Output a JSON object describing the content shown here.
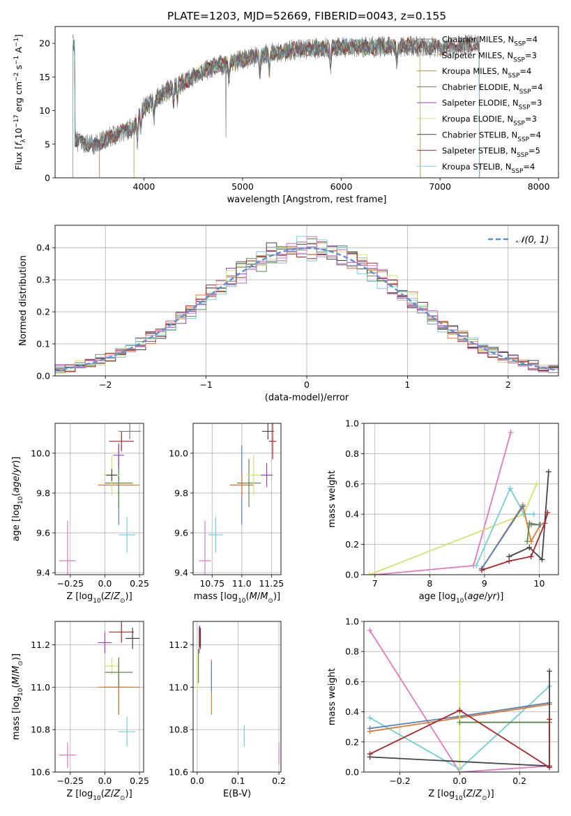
{
  "figure": {
    "title": "PLATE=1203, MJD=52669, FIBERID=0043, z=0.155"
  },
  "colors": {
    "Chabrier MILES": "#7f7f7f",
    "Salpeter MILES": "#aaaaaa",
    "Kroupa MILES": "#c9893a",
    "Chabrier ELODIE": "#5a8a4a",
    "Salpeter ELODIE": "#9b3fbf",
    "Kroupa ELODIE": "#d6e266",
    "Chabrier STELIB": "#444444",
    "Salpeter STELIB": "#b22222",
    "Kroupa STELIB": "#7fd3e0",
    "pink": "#e377c2",
    "orange": "#e07a2f",
    "steelblue": "#4f81bd",
    "teal": "#6fd0d8",
    "normal_curve": "#5b8fd6"
  },
  "chart_data": [
    {
      "type": "line",
      "panel": "spectrum",
      "title": "PLATE=1203, MJD=52669, FIBERID=0043, z=0.155",
      "xlabel": "wavelength [Angstrom, rest frame]",
      "ylabel": "Flux [f_λ 10^-17 erg cm^-2 s^-1 A^-1]",
      "xlim": [
        3100,
        8200
      ],
      "ylim": [
        0,
        22.5
      ],
      "xticks": [
        4000,
        5000,
        6000,
        7000,
        8000
      ],
      "yticks": [
        0,
        5,
        10,
        15,
        20
      ],
      "legend_position": "top-right",
      "continuum": {
        "x": [
          3300,
          3500,
          3700,
          3900,
          4000,
          4100,
          4300,
          4500,
          4700,
          4900,
          5100,
          5300,
          5500,
          5700,
          5900,
          6100,
          6300,
          6500,
          6700,
          6900,
          7100,
          7300,
          7400
        ],
        "y": [
          5.5,
          4.8,
          6.5,
          7.5,
          10.5,
          11.5,
          13.5,
          15.0,
          16.5,
          17.2,
          18.0,
          18.5,
          19.0,
          19.2,
          19.3,
          19.5,
          19.4,
          19.5,
          19.6,
          19.4,
          19.5,
          19.8,
          19.8
        ]
      },
      "series": [
        {
          "name": "Chabrier MILES",
          "nssp": "4",
          "range": [
            3280,
            6800
          ]
        },
        {
          "name": "Salpeter MILES",
          "nssp": "3",
          "range": [
            3550,
            7400
          ]
        },
        {
          "name": "Kroupa MILES",
          "nssp": "4",
          "range": [
            3550,
            7400
          ]
        },
        {
          "name": "Chabrier ELODIE",
          "nssp": "4",
          "range": [
            3900,
            6800
          ]
        },
        {
          "name": "Salpeter ELODIE",
          "nssp": "3",
          "range": [
            3900,
            6800
          ]
        },
        {
          "name": "Kroupa ELODIE",
          "nssp": "3",
          "range": [
            3900,
            6800
          ]
        },
        {
          "name": "Chabrier STELIB",
          "nssp": "4",
          "range": [
            3280,
            7400
          ]
        },
        {
          "name": "Salpeter STELIB",
          "nssp": "5",
          "range": [
            3280,
            7400
          ]
        },
        {
          "name": "Kroupa STELIB",
          "nssp": "4",
          "range": [
            3280,
            7400
          ]
        }
      ]
    },
    {
      "type": "line",
      "panel": "residuals",
      "xlabel": "(data-model)/error",
      "ylabel": "Normed distribution",
      "xlim": [
        -2.5,
        2.5
      ],
      "ylim": [
        0,
        0.47
      ],
      "xticks": [
        -2,
        -1,
        0,
        1,
        2
      ],
      "yticks": [
        0.0,
        0.1,
        0.2,
        0.3,
        0.4
      ],
      "grid": true,
      "legend_position": "top-right",
      "normal_label": "𝒩(0, 1)",
      "bin_width": 0.1
    },
    {
      "type": "scatter",
      "panel": "age-vs-Z",
      "xlabel": "Z [log10(Z/Z⊙)]",
      "ylabel": "age [log10(age/yr)]",
      "xlim": [
        -0.36,
        0.28
      ],
      "ylim": [
        9.39,
        10.15
      ],
      "xticks": [
        -0.25,
        0.0,
        0.25
      ],
      "yticks": [
        9.4,
        9.6,
        9.8,
        10.0
      ],
      "grid": true,
      "points": [
        {
          "color": "pink",
          "x": -0.27,
          "xerr": 0.06,
          "y": 9.46,
          "yerr": 0.2
        },
        {
          "color": "teal",
          "x": 0.16,
          "xerr": 0.06,
          "y": 9.59,
          "yerr": 0.09
        },
        {
          "color": "steelblue",
          "x": 0.1,
          "xerr": 0.1,
          "y": 9.84,
          "yerr": 0.2
        },
        {
          "color": "orange",
          "x": 0.1,
          "xerr": 0.15,
          "y": 9.84,
          "yerr": 0.06
        },
        {
          "color": "Chabrier ELODIE",
          "x": 0.1,
          "xerr": 0.1,
          "y": 9.85,
          "yerr": 0.12
        },
        {
          "color": "Kroupa ELODIE",
          "x": 0.05,
          "xerr": 0.06,
          "y": 9.89,
          "yerr": 0.1
        },
        {
          "color": "Chabrier STELIB",
          "x": 0.05,
          "xerr": 0.04,
          "y": 9.89,
          "yerr": 0.03
        },
        {
          "color": "Salpeter ELODIE",
          "x": 0.1,
          "xerr": 0.04,
          "y": 9.99,
          "yerr": 0.06
        },
        {
          "color": "Salpeter STELIB",
          "x": 0.12,
          "xerr": 0.09,
          "y": 10.06,
          "yerr": 0.05
        },
        {
          "color": "Chabrier MILES",
          "x": 0.18,
          "xerr": 0.08,
          "y": 10.11,
          "yerr": 0.04
        }
      ]
    },
    {
      "type": "scatter",
      "panel": "age-vs-mass",
      "xlabel": "mass [log10(M/M⊙)]",
      "ylabel": "",
      "xlim": [
        10.59,
        11.33
      ],
      "ylim": [
        9.39,
        10.15
      ],
      "xticks": [
        10.75,
        11.0,
        11.25
      ],
      "yticks": [
        9.4,
        9.6,
        9.8,
        10.0
      ],
      "grid": true,
      "points": [
        {
          "color": "pink",
          "x": 10.69,
          "xerr": 0.05,
          "y": 9.46,
          "yerr": 0.2
        },
        {
          "color": "teal",
          "x": 10.78,
          "xerr": 0.06,
          "y": 9.59,
          "yerr": 0.09
        },
        {
          "color": "steelblue",
          "x": 11.0,
          "xerr": 0.1,
          "y": 9.84,
          "yerr": 0.2
        },
        {
          "color": "orange",
          "x": 11.0,
          "xerr": 0.1,
          "y": 9.84,
          "yerr": 0.06
        },
        {
          "color": "Chabrier ELODIE",
          "x": 11.06,
          "xerr": 0.1,
          "y": 9.85,
          "yerr": 0.12
        },
        {
          "color": "Kroupa ELODIE",
          "x": 11.1,
          "xerr": 0.06,
          "y": 9.89,
          "yerr": 0.1
        },
        {
          "color": "Salpeter ELODIE",
          "x": 11.21,
          "xerr": 0.05,
          "y": 9.89,
          "yerr": 0.06
        },
        {
          "color": "Salpeter STELIB",
          "x": 11.26,
          "xerr": 0.03,
          "y": 10.06,
          "yerr": 0.09
        },
        {
          "color": "Chabrier STELIB",
          "x": 11.22,
          "xerr": 0.05,
          "y": 10.11,
          "yerr": 0.04
        }
      ]
    },
    {
      "type": "line",
      "panel": "massweight-vs-age",
      "xlabel": "age [log10(age/yr)]",
      "ylabel": "mass weight",
      "xlim": [
        6.8,
        10.35
      ],
      "ylim": [
        0,
        1.0
      ],
      "xticks": [
        7,
        8,
        9,
        10
      ],
      "yticks": [
        0.0,
        0.2,
        0.4,
        0.6,
        0.8,
        1.0
      ],
      "grid": true,
      "series": [
        {
          "color": "pink",
          "x": [
            7.0,
            8.8,
            9.48
          ],
          "y": [
            0.0,
            0.06,
            0.94
          ]
        },
        {
          "color": "Kroupa ELODIE",
          "x": [
            6.9,
            9.72,
            9.95
          ],
          "y": [
            0.0,
            0.4,
            0.6
          ]
        },
        {
          "color": "teal",
          "x": [
            8.85,
            9.47,
            9.72,
            9.9
          ],
          "y": [
            0.06,
            0.57,
            0.4,
            0.4
          ]
        },
        {
          "color": "orange",
          "x": [
            8.95,
            9.7,
            9.85,
            10.02
          ],
          "y": [
            0.04,
            0.46,
            0.22,
            0.33
          ]
        },
        {
          "color": "steelblue",
          "x": [
            8.95,
            9.7
          ],
          "y": [
            0.04,
            0.45
          ]
        },
        {
          "color": "Chabrier ELODIE",
          "x": [
            9.78,
            9.82,
            10.0
          ],
          "y": [
            0.22,
            0.34,
            0.33
          ]
        },
        {
          "color": "Chabrier STELIB",
          "x": [
            9.45,
            9.82,
            10.05,
            10.17
          ],
          "y": [
            0.12,
            0.18,
            0.1,
            0.68
          ]
        },
        {
          "color": "Salpeter STELIB",
          "x": [
            8.95,
            9.45,
            9.85,
            10.1,
            10.15
          ],
          "y": [
            0.03,
            0.09,
            0.12,
            0.34,
            0.41
          ]
        },
        {
          "color": "Chabrier MILES",
          "x": [
            9.85,
            10.02
          ],
          "y": [
            0.33,
            0.33
          ]
        }
      ]
    },
    {
      "type": "scatter",
      "panel": "mass-vs-Z",
      "xlabel": "Z [log10(Z/Z⊙)]",
      "ylabel": "mass [log10(M/M⊙)]",
      "xlim": [
        -0.36,
        0.28
      ],
      "ylim": [
        10.6,
        11.31
      ],
      "xticks": [
        -0.25,
        0.0,
        0.25
      ],
      "yticks": [
        10.6,
        10.8,
        11.0,
        11.2
      ],
      "grid": true,
      "points": [
        {
          "color": "pink",
          "x": -0.27,
          "xerr": 0.06,
          "y": 10.68,
          "yerr": 0.06
        },
        {
          "color": "teal",
          "x": 0.16,
          "xerr": 0.06,
          "y": 10.79,
          "yerr": 0.07
        },
        {
          "color": "steelblue",
          "x": 0.1,
          "xerr": 0.1,
          "y": 11.0,
          "yerr": 0.13
        },
        {
          "color": "orange",
          "x": 0.1,
          "xerr": 0.15,
          "y": 11.0,
          "yerr": 0.13
        },
        {
          "color": "Kroupa ELODIE",
          "x": 0.05,
          "xerr": 0.05,
          "y": 11.1,
          "yerr": 0.04
        },
        {
          "color": "Chabrier ELODIE",
          "x": 0.1,
          "xerr": 0.1,
          "y": 11.07,
          "yerr": 0.07
        },
        {
          "color": "Salpeter ELODIE",
          "x": 0.0,
          "xerr": 0.05,
          "y": 11.21,
          "yerr": 0.05
        },
        {
          "color": "Salpeter STELIB",
          "x": 0.12,
          "xerr": 0.09,
          "y": 11.26,
          "yerr": 0.05
        },
        {
          "color": "Chabrier STELIB",
          "x": 0.2,
          "xerr": 0.05,
          "y": 11.23,
          "yerr": 0.05
        }
      ]
    },
    {
      "type": "scatter",
      "panel": "mass-vs-EBV",
      "xlabel": "E(B-V)",
      "ylabel": "",
      "xlim": [
        -0.01,
        0.205
      ],
      "ylim": [
        10.6,
        11.31
      ],
      "xticks": [
        0.0,
        0.1,
        0.2
      ],
      "yticks": [
        10.6,
        10.8,
        11.0,
        11.2
      ],
      "grid": true,
      "points": [
        {
          "color": "pink",
          "x": 0.2,
          "xerr": 0,
          "y": 10.69,
          "yerr": 0.05
        },
        {
          "color": "teal",
          "x": 0.115,
          "xerr": 0,
          "y": 10.77,
          "yerr": 0.05
        },
        {
          "color": "orange",
          "x": 0.035,
          "xerr": 0,
          "y": 11.0,
          "yerr": 0.13
        },
        {
          "color": "steelblue",
          "x": 0.035,
          "xerr": 0,
          "y": 11.05,
          "yerr": 0.07
        },
        {
          "color": "Kroupa ELODIE",
          "x": 0.0,
          "xerr": 0,
          "y": 11.08,
          "yerr": 0.1
        },
        {
          "color": "Chabrier ELODIE",
          "x": 0.003,
          "xerr": 0,
          "y": 11.1,
          "yerr": 0.08
        },
        {
          "color": "Salpeter ELODIE",
          "x": 0.005,
          "xerr": 0,
          "y": 11.22,
          "yerr": 0.06
        },
        {
          "color": "Salpeter STELIB",
          "x": 0.008,
          "xerr": 0,
          "y": 11.23,
          "yerr": 0.05
        },
        {
          "color": "Chabrier STELIB",
          "x": 0.006,
          "xerr": 0,
          "y": 11.24,
          "yerr": 0.05
        }
      ]
    },
    {
      "type": "line",
      "panel": "massweight-vs-Z",
      "xlabel": "Z [log10(Z/Z⊙)]",
      "ylabel": "mass weight",
      "xlim": [
        -0.32,
        0.33
      ],
      "ylim": [
        0,
        1.0
      ],
      "xticks": [
        -0.2,
        0.0,
        0.2
      ],
      "yticks": [
        0.0,
        0.2,
        0.4,
        0.6,
        0.8,
        1.0
      ],
      "grid": true,
      "series": [
        {
          "color": "pink",
          "x": [
            -0.3,
            0.0,
            0.3
          ],
          "y": [
            0.94,
            0.0,
            0.04
          ]
        },
        {
          "color": "teal",
          "x": [
            -0.3,
            0.0,
            0.3
          ],
          "y": [
            0.36,
            0.02,
            0.57
          ]
        },
        {
          "color": "steelblue",
          "x": [
            -0.3,
            0.0,
            0.3
          ],
          "y": [
            0.29,
            0.37,
            0.46
          ]
        },
        {
          "color": "orange",
          "x": [
            -0.3,
            0.0,
            0.3
          ],
          "y": [
            0.27,
            0.36,
            0.45
          ]
        },
        {
          "color": "Kroupa ELODIE",
          "x": [
            0.0,
            0.0
          ],
          "y": [
            0.0,
            0.6
          ]
        },
        {
          "color": "Chabrier ELODIE",
          "x": [
            0.0,
            0.3
          ],
          "y": [
            0.33,
            0.33
          ]
        },
        {
          "color": "Chabrier STELIB",
          "x": [
            -0.3,
            0.3,
            0.3
          ],
          "y": [
            0.1,
            0.04,
            0.67
          ]
        },
        {
          "color": "Salpeter STELIB",
          "x": [
            -0.3,
            0.0,
            0.3,
            0.3
          ],
          "y": [
            0.12,
            0.41,
            0.03,
            0.35
          ]
        }
      ]
    }
  ]
}
